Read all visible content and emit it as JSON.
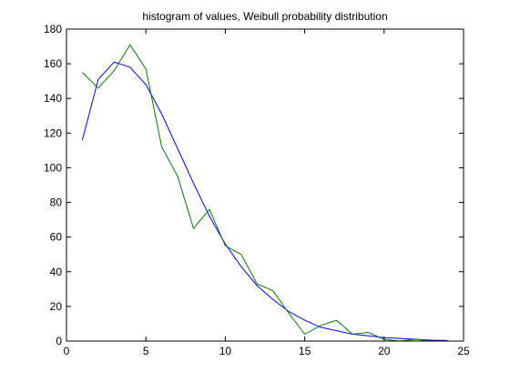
{
  "chart_data": {
    "type": "line",
    "title": "histogram of values, Weibull probability distribution",
    "xlabel": "",
    "ylabel": "",
    "xlim": [
      0,
      25
    ],
    "ylim": [
      0,
      180
    ],
    "xticks": [
      0,
      5,
      10,
      15,
      20,
      25
    ],
    "yticks": [
      0,
      20,
      40,
      60,
      80,
      100,
      120,
      140,
      160,
      180
    ],
    "grid": false,
    "legend": false,
    "x": [
      1,
      2,
      3,
      4,
      5,
      6,
      7,
      8,
      9,
      10,
      11,
      12,
      13,
      14,
      15,
      16,
      17,
      18,
      19,
      20,
      21,
      22,
      23,
      24
    ],
    "series": [
      {
        "color": "#0000ff",
        "values": [
          116,
          151,
          161,
          158,
          148,
          131,
          111,
          91,
          72,
          56,
          43,
          32,
          24,
          17,
          12,
          8,
          6,
          4,
          3,
          2,
          1.5,
          1,
          0.5,
          0.3
        ]
      },
      {
        "color": "#008000",
        "values": [
          155,
          146,
          156,
          171,
          157,
          112,
          95,
          65,
          76,
          55,
          50,
          33,
          29,
          16,
          4,
          9,
          12,
          4,
          5,
          1,
          0,
          1,
          0,
          0
        ]
      }
    ]
  }
}
